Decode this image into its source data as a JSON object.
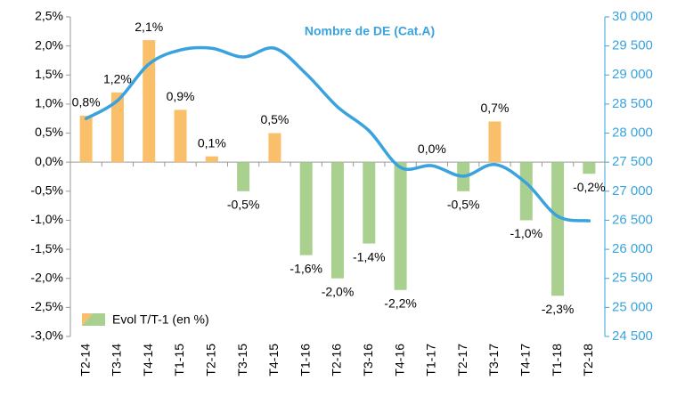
{
  "chart_data": {
    "type": "bar",
    "categories": [
      "T2-14",
      "T3-14",
      "T4-14",
      "T1-15",
      "T2-15",
      "T3-15",
      "T4-15",
      "T1-16",
      "T2-16",
      "T3-16",
      "T4-16",
      "T1-17",
      "T2-17",
      "T3-17",
      "T4-17",
      "T1-18",
      "T2-18"
    ],
    "series": [
      {
        "name": "Evol T/T-1 (en %)",
        "type": "bar",
        "color": "#f9bf6a",
        "negative_color": "#a9d08e",
        "values": [
          0.8,
          1.2,
          2.1,
          0.9,
          0.1,
          -0.5,
          0.5,
          -1.6,
          -2.0,
          -1.4,
          -2.2,
          0.0,
          -0.5,
          0.7,
          -1.0,
          -2.3,
          -0.2
        ],
        "value_labels": [
          "0,8%",
          "1,2%",
          "2,1%",
          "0,9%",
          "0,1%",
          "-0,5%",
          "0,5%",
          "-1,6%",
          "-2,0%",
          "-1,4%",
          "-2,2%",
          "0,0%",
          "-0,5%",
          "0,7%",
          "-1,0%",
          "-2,3%",
          "-0,2%"
        ]
      },
      {
        "name": "Nombre de DE (Cat.A)",
        "type": "line",
        "axis": "y2",
        "color": "#3aa3dd",
        "values": [
          28250,
          28560,
          29190,
          29430,
          29460,
          29310,
          29460,
          29020,
          28450,
          28040,
          27410,
          27440,
          27260,
          27460,
          27140,
          26570,
          26490
        ]
      }
    ],
    "ylim": [
      -3.0,
      2.5
    ],
    "yticks": [
      {
        "value": -3.0,
        "label": "-3,0%"
      },
      {
        "value": -2.5,
        "label": "-2,5%"
      },
      {
        "value": -2.0,
        "label": "-2,0%"
      },
      {
        "value": -1.5,
        "label": "-1,5%"
      },
      {
        "value": -1.0,
        "label": "-1,0%"
      },
      {
        "value": -0.5,
        "label": "-0,5%"
      },
      {
        "value": 0.0,
        "label": "0,0%"
      },
      {
        "value": 0.5,
        "label": "0,5%"
      },
      {
        "value": 1.0,
        "label": "1,0%"
      },
      {
        "value": 1.5,
        "label": "1,5%"
      },
      {
        "value": 2.0,
        "label": "2,0%"
      },
      {
        "value": 2.5,
        "label": "2,5%"
      }
    ],
    "y2lim": [
      24500,
      30000
    ],
    "y2ticks": [
      {
        "value": 24500,
        "label": "24 500"
      },
      {
        "value": 25000,
        "label": "25 000"
      },
      {
        "value": 25500,
        "label": "25 500"
      },
      {
        "value": 26000,
        "label": "26 000"
      },
      {
        "value": 26500,
        "label": "26 500"
      },
      {
        "value": 27000,
        "label": "27 000"
      },
      {
        "value": 27500,
        "label": "27 500"
      },
      {
        "value": 28000,
        "label": "28 000"
      },
      {
        "value": 28500,
        "label": "28 500"
      },
      {
        "value": 29000,
        "label": "29 000"
      },
      {
        "value": 29500,
        "label": "29 500"
      },
      {
        "value": 30000,
        "label": "30 000"
      }
    ]
  }
}
